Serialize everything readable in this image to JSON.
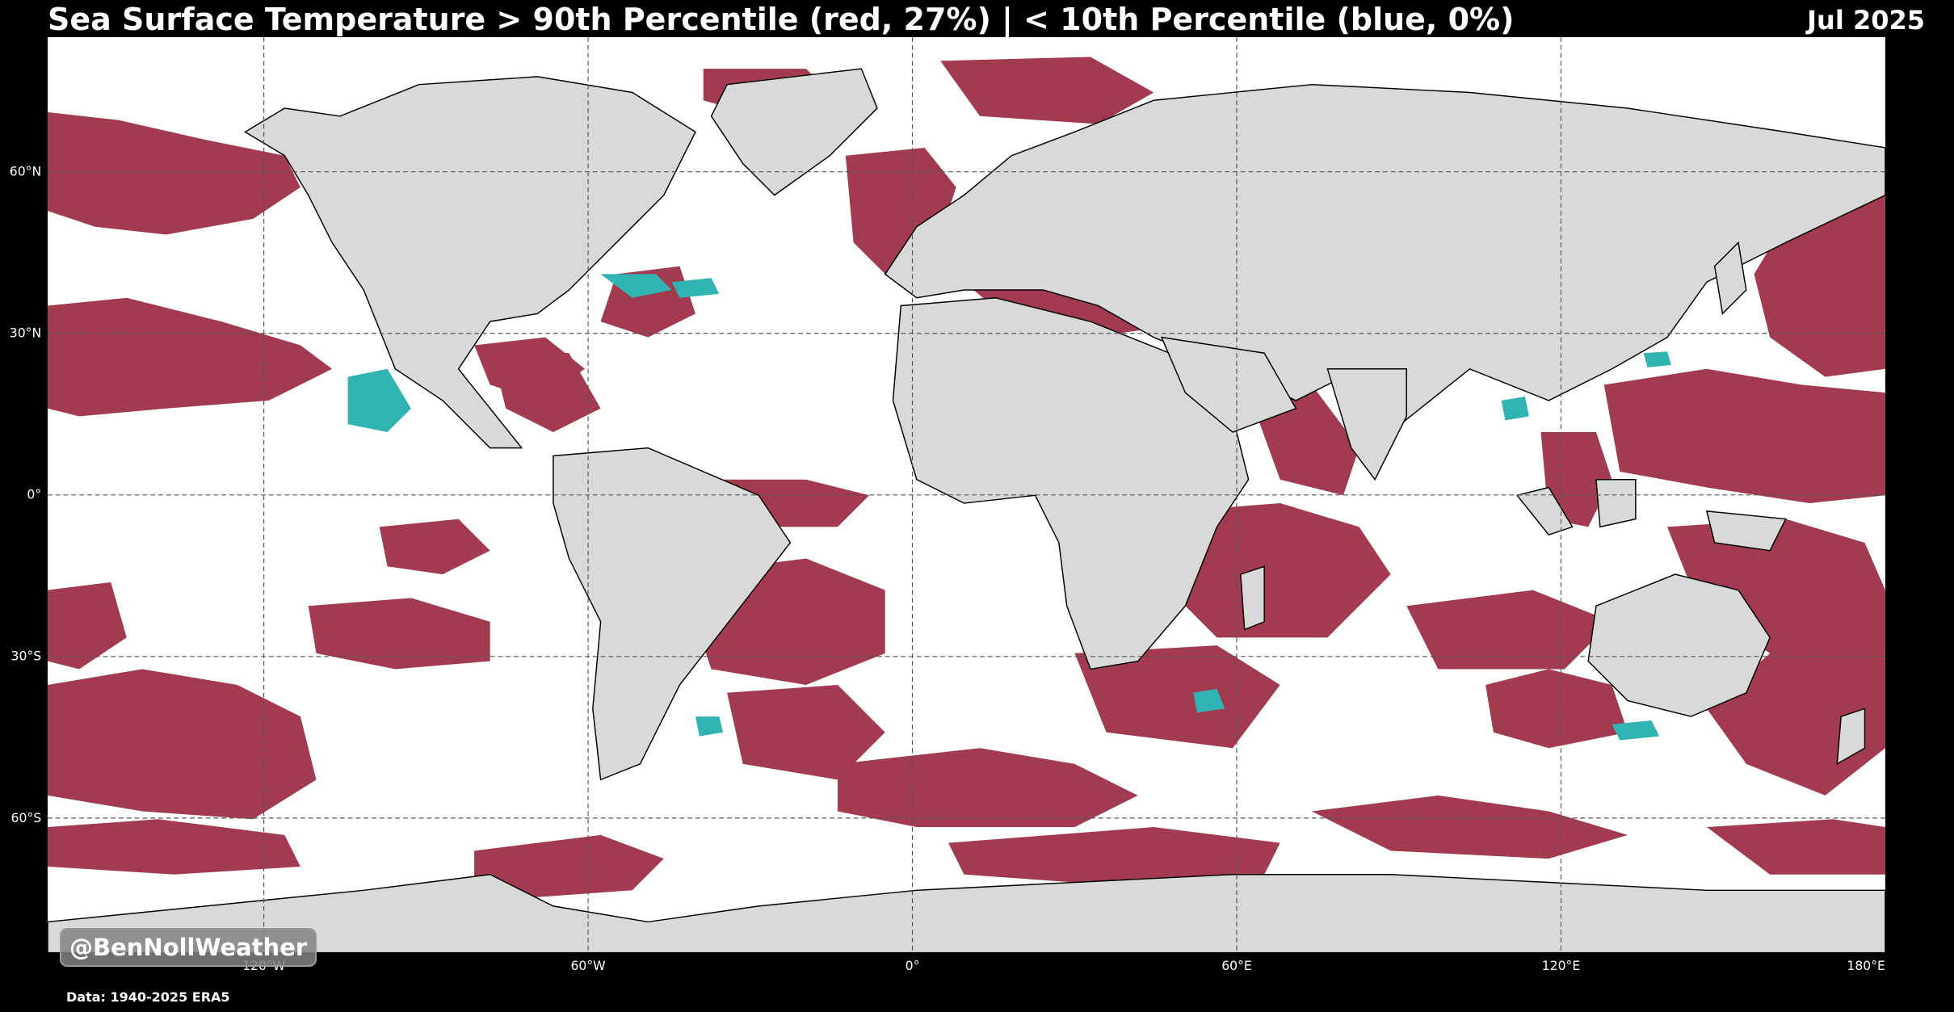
{
  "header": {
    "title": "Sea Surface Temperature > 90th Percentile (red, 27%) | < 10th Percentile (blue, 0%)",
    "date": "Jul 2025"
  },
  "watermark": "@BenNollWeather",
  "source": "Data: 1940-2025 ERA5",
  "colors": {
    "background": "#000000",
    "ocean": "#ffffff",
    "land": "#d9d9d9",
    "warm_anomaly": "#a33b50",
    "cold_anomaly": "#2fb3b3",
    "gridline": "#555555"
  },
  "map": {
    "projection": "equirectangular",
    "lon_range": [
      -160,
      180
    ],
    "lat_range": [
      -85,
      85
    ],
    "lat_ticks": [
      {
        "value": 60,
        "label": "60°N"
      },
      {
        "value": 30,
        "label": "30°N"
      },
      {
        "value": 0,
        "label": "0°"
      },
      {
        "value": -30,
        "label": "30°S"
      },
      {
        "value": -60,
        "label": "60°S"
      }
    ],
    "lon_ticks": [
      {
        "value": -120,
        "label": "120°W"
      },
      {
        "value": -60,
        "label": "60°W"
      },
      {
        "value": 0,
        "label": "0°"
      },
      {
        "value": 60,
        "label": "60°E"
      },
      {
        "value": 120,
        "label": "120°E"
      },
      {
        "value": 180,
        "label": "180°E"
      }
    ],
    "warm_fraction_percent": 27,
    "cold_fraction_percent": 0
  }
}
